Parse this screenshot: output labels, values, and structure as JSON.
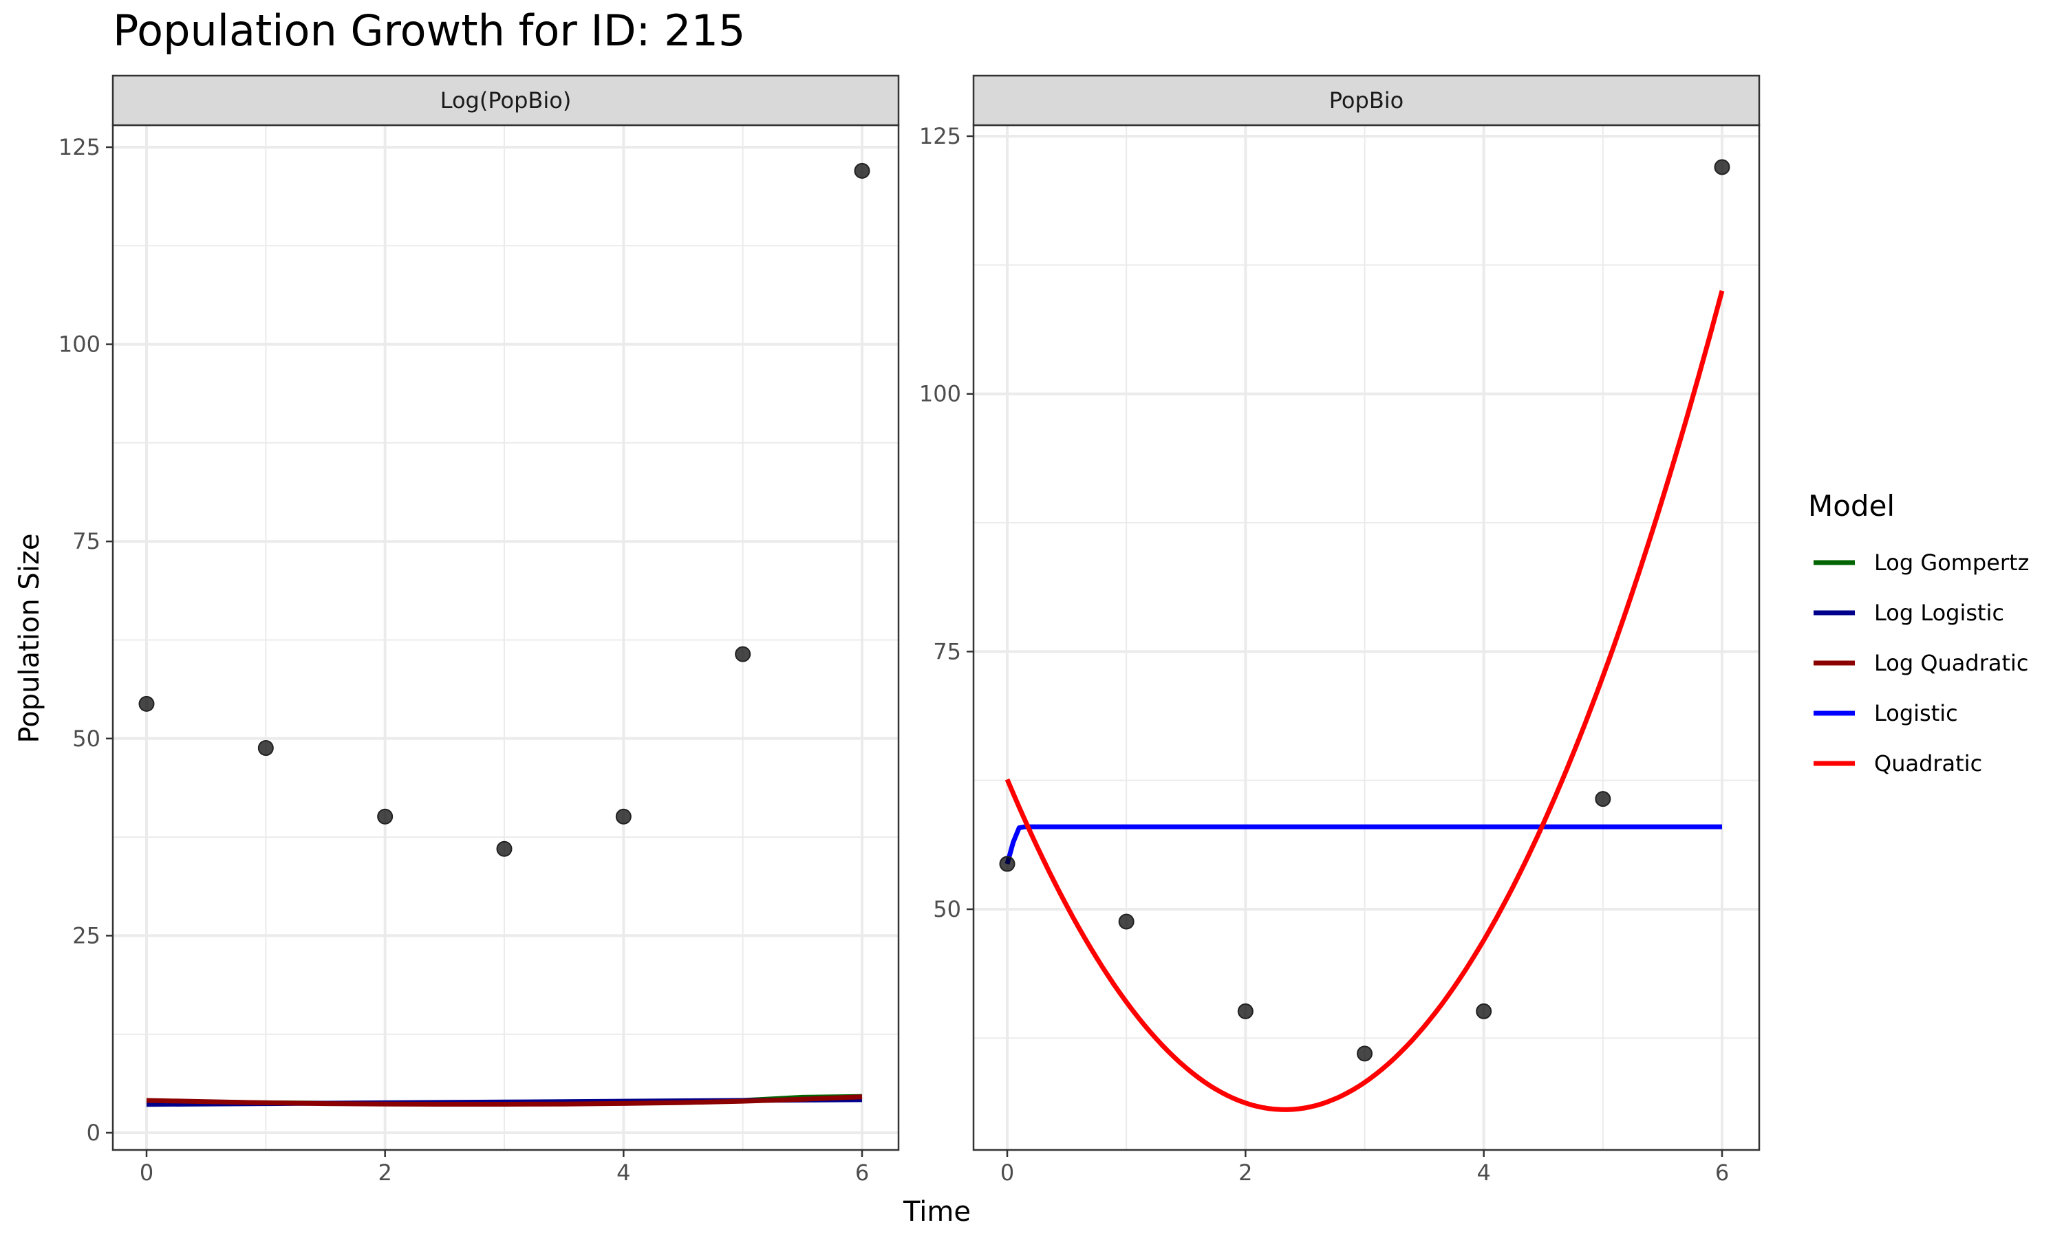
{
  "title": "Population Growth for ID: 215",
  "xlabel": "Time",
  "ylabel": "Population Size",
  "legend": {
    "title": "Model",
    "items": [
      {
        "label": "Log Gompertz",
        "color": "#006400"
      },
      {
        "label": "Log Logistic",
        "color": "#00008B"
      },
      {
        "label": "Log Quadratic",
        "color": "#8B0000"
      },
      {
        "label": "Logistic",
        "color": "#0000FF"
      },
      {
        "label": "Quadratic",
        "color": "#FF0000"
      }
    ]
  },
  "chart_data": [
    {
      "type": "scatter",
      "panel": "Log(PopBio)",
      "xlim": [
        0,
        6
      ],
      "ylim": [
        0,
        125
      ],
      "x_ticks": [
        0,
        2,
        4,
        6
      ],
      "y_ticks": [
        0,
        25,
        50,
        75,
        100,
        125
      ],
      "grid": true,
      "points": {
        "x": [
          0,
          1,
          2,
          3,
          4,
          5,
          6
        ],
        "y": [
          54.4,
          48.8,
          40.1,
          36.0,
          40.1,
          60.7,
          122.0
        ]
      },
      "series": [
        {
          "name": "Log Gompertz",
          "color": "#006400",
          "x": [
            0,
            1,
            2,
            3,
            4,
            4.5,
            5,
            5.5,
            6
          ],
          "y": [
            4.0,
            3.8,
            3.7,
            3.7,
            3.8,
            3.85,
            4.1,
            4.5,
            4.6
          ]
        },
        {
          "name": "Log Logistic",
          "color": "#00008B",
          "x": [
            0,
            1,
            2,
            3,
            4,
            5,
            6
          ],
          "y": [
            3.6,
            3.7,
            3.8,
            3.9,
            4.0,
            4.1,
            4.2
          ]
        },
        {
          "name": "Log Quadratic",
          "color": "#8B0000",
          "x": [
            0,
            0.5,
            1,
            1.5,
            2,
            2.5,
            3,
            3.5,
            4,
            4.5,
            5,
            5.5,
            6
          ],
          "y": [
            4.1,
            3.95,
            3.8,
            3.7,
            3.65,
            3.62,
            3.62,
            3.65,
            3.72,
            3.83,
            4.0,
            4.25,
            4.55
          ]
        }
      ]
    },
    {
      "type": "scatter",
      "panel": "PopBio",
      "xlim": [
        0,
        6
      ],
      "ylim": [
        25,
        125
      ],
      "x_ticks": [
        0,
        2,
        4,
        6
      ],
      "y_ticks": [
        50,
        75,
        100,
        125
      ],
      "grid": true,
      "points": {
        "x": [
          0,
          1,
          2,
          3,
          4,
          5,
          6
        ],
        "y": [
          54.4,
          48.8,
          40.1,
          36.0,
          40.1,
          60.7,
          122.0
        ]
      },
      "series": [
        {
          "name": "Logistic",
          "color": "#0000FF",
          "x": [
            0,
            0.05,
            0.1,
            0.15,
            0.2,
            1,
            2,
            3,
            4,
            5,
            6
          ],
          "y": [
            54.4,
            56.5,
            57.9,
            58.0,
            58.0,
            58.0,
            58.0,
            58.0,
            58.0,
            58.0,
            58.0
          ]
        },
        {
          "name": "Quadratic",
          "color": "#FF0000",
          "quadratic": [
            62.6,
            -27.5,
            5.9
          ],
          "x_range": [
            0,
            6
          ]
        }
      ]
    }
  ]
}
